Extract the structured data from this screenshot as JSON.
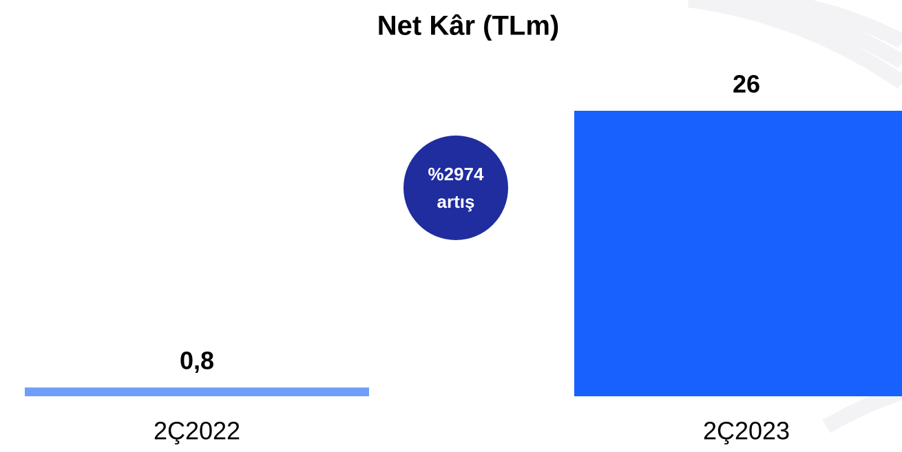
{
  "chart_data": {
    "type": "bar",
    "title": "Net Kâr (TLm)",
    "categories": [
      "2Ç2022",
      "2Ç2023"
    ],
    "values": [
      0.8,
      26
    ],
    "value_labels": [
      "0,8",
      "26"
    ],
    "colors": [
      "#6f9ef8",
      "#1762ff"
    ],
    "annotation": [
      "%2974",
      "artış"
    ],
    "annotation_color": "#1f2d9e"
  }
}
